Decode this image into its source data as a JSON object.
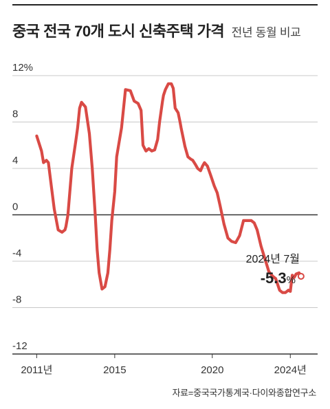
{
  "header": {
    "title": "중국 전국 70개 도시 신축주택 가격",
    "subtitle": "전년 동월 비교"
  },
  "source": "자료=중국국가통계국·다이와종합연구소",
  "annotation": {
    "date_label": "2024년 7월",
    "value": "-5.3",
    "unit": "%"
  },
  "colors": {
    "line": "#d94a45",
    "axis": "#333333",
    "grid": "#c8c8c8",
    "text": "#222222"
  },
  "chart_data": {
    "type": "line",
    "title": "중국 전국 70개 도시 신축주택 가격",
    "subtitle": "전년 동월 비교",
    "ylim": [
      -12,
      12
    ],
    "y_ticks": [
      12,
      8,
      4,
      0,
      -4,
      -8,
      -12
    ],
    "y_tick_labels": [
      "12%",
      "8",
      "4",
      "0",
      "-4",
      "-8",
      "-12"
    ],
    "xlim": [
      2010.6,
      2025.4
    ],
    "x_ticks": [
      2011,
      2015,
      2020,
      2024
    ],
    "x_tick_labels": [
      "2011년",
      "2015",
      "2020",
      "2024년"
    ],
    "grid": "horizontal",
    "series": [
      {
        "name": "",
        "x": [
          2011.0,
          2011.25,
          2011.35,
          2011.5,
          2011.6,
          2011.75,
          2011.9,
          2012.1,
          2012.3,
          2012.45,
          2012.5,
          2012.6,
          2012.8,
          2013.0,
          2013.1,
          2013.2,
          2013.3,
          2013.5,
          2013.7,
          2013.85,
          2014.0,
          2014.1,
          2014.2,
          2014.35,
          2014.5,
          2014.65,
          2014.75,
          2014.85,
          2015.0,
          2015.1,
          2015.2,
          2015.35,
          2015.55,
          2015.8,
          2016.0,
          2016.2,
          2016.35,
          2016.45,
          2016.6,
          2016.75,
          2016.9,
          2017.05,
          2017.2,
          2017.3,
          2017.45,
          2017.5,
          2017.6,
          2017.75,
          2017.9,
          2018.0,
          2018.1,
          2018.25,
          2018.35,
          2018.4,
          2018.5,
          2018.6,
          2018.75,
          2018.9,
          2019.0,
          2019.15,
          2019.25,
          2019.4,
          2019.5,
          2019.6,
          2019.75,
          2019.9,
          2020.0,
          2020.1,
          2020.25,
          2020.4,
          2020.6,
          2020.8,
          2021.0,
          2021.2,
          2021.4,
          2021.6,
          2021.8,
          2022.0,
          2022.15,
          2022.3,
          2022.5,
          2022.7,
          2022.9,
          2023.1,
          2023.25,
          2023.45,
          2023.6,
          2023.75,
          2023.9,
          2024.0,
          2024.1,
          2024.2,
          2024.3,
          2024.45,
          2024.55
        ],
        "values": [
          6.8,
          5.5,
          4.5,
          4.7,
          4.5,
          2.5,
          0.5,
          -1.3,
          -1.5,
          -1.3,
          -1.0,
          0.0,
          4.0,
          6.3,
          7.5,
          9.2,
          9.7,
          9.3,
          7.0,
          4.0,
          0.0,
          -3.0,
          -5.0,
          -6.4,
          -6.2,
          -5.0,
          -3.0,
          -0.5,
          2.0,
          5.0,
          6.0,
          7.5,
          10.8,
          10.7,
          9.8,
          9.6,
          9.0,
          6.0,
          5.5,
          5.7,
          5.5,
          5.6,
          6.5,
          8.0,
          9.8,
          10.3,
          10.8,
          11.3,
          11.3,
          10.9,
          9.2,
          8.8,
          8.0,
          7.5,
          6.7,
          5.9,
          5.0,
          4.8,
          4.7,
          4.3,
          4.0,
          3.8,
          4.2,
          4.5,
          4.2,
          3.5,
          3.0,
          2.5,
          1.9,
          0.8,
          -0.8,
          -2.0,
          -2.3,
          -2.4,
          -1.8,
          -0.5,
          -0.5,
          -0.5,
          -0.7,
          -1.3,
          -2.7,
          -3.8,
          -4.9,
          -5.3,
          -5.5,
          -6.5,
          -6.7,
          -6.7,
          -6.5,
          -6.6,
          -5.2,
          -5.4,
          -5.1,
          -5.0,
          -5.3
        ]
      }
    ]
  }
}
